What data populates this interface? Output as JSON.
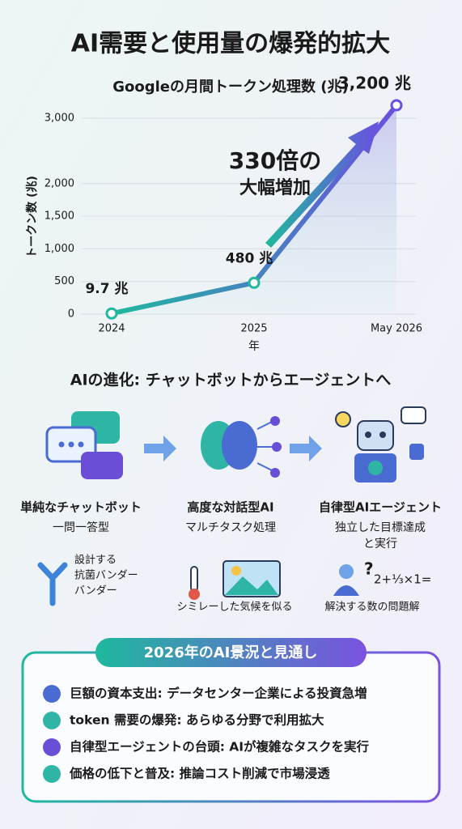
{
  "title": "AI需要と使用量の爆発的拡大",
  "chart_data": {
    "type": "line",
    "title": "Googleの月間トークン処理数 (兆)",
    "x_label": "年",
    "y_label": "トークン数 (兆)",
    "categories": [
      "2024",
      "2025",
      "May 2026"
    ],
    "values": [
      9.7,
      480,
      3200
    ],
    "value_labels": [
      "9.7 兆",
      "480 兆",
      "3,200 兆"
    ],
    "color": "#1fb89e",
    "gradient": [
      "#1fb89e",
      "#6b4fe0"
    ],
    "ylim": [
      0,
      3300
    ],
    "yticks": [
      0,
      500,
      {
        "value": 1000,
        "label": "1,000"
      },
      {
        "value": 1500,
        "label": "1,500"
      },
      {
        "value": 2000,
        "label": "2,000"
      },
      {
        "value": 3000,
        "label": "3,000"
      }
    ],
    "grid": true,
    "annotations": [
      "330倍の",
      "大幅増加"
    ]
  },
  "evolution": {
    "title": "AIの進化: チャットボットからエージェントへ",
    "stages": [
      {
        "title": "単純なチャットボット",
        "desc": [
          "一問一答型"
        ]
      },
      {
        "title": "高度な対話型AI",
        "desc": [
          "マルチタスク処理"
        ]
      },
      {
        "title": "自律型AIエージェント",
        "desc": [
          "独立した目標達成",
          "と実行"
        ]
      }
    ],
    "examples": [
      {
        "lines": [
          "設計する",
          "抗菌バンダー",
          "バンダー"
        ]
      },
      {
        "lines": [
          "シミレーした気候を似る"
        ]
      },
      {
        "lines": [
          "解決する数の問題解"
        ],
        "math": "2+⅓×1="
      }
    ]
  },
  "outlook": {
    "title": "2026年のAI景況と見通し",
    "items": [
      "巨額の資本支出: データセンター企業による投資急増",
      "token 需要の爆発: あらゆる分野で利用拡大",
      "自律型エージェントの台頭: AIが複雑なタスクを実行",
      "価格の低下と普及: 推論コスト削減で市場浸透"
    ]
  }
}
